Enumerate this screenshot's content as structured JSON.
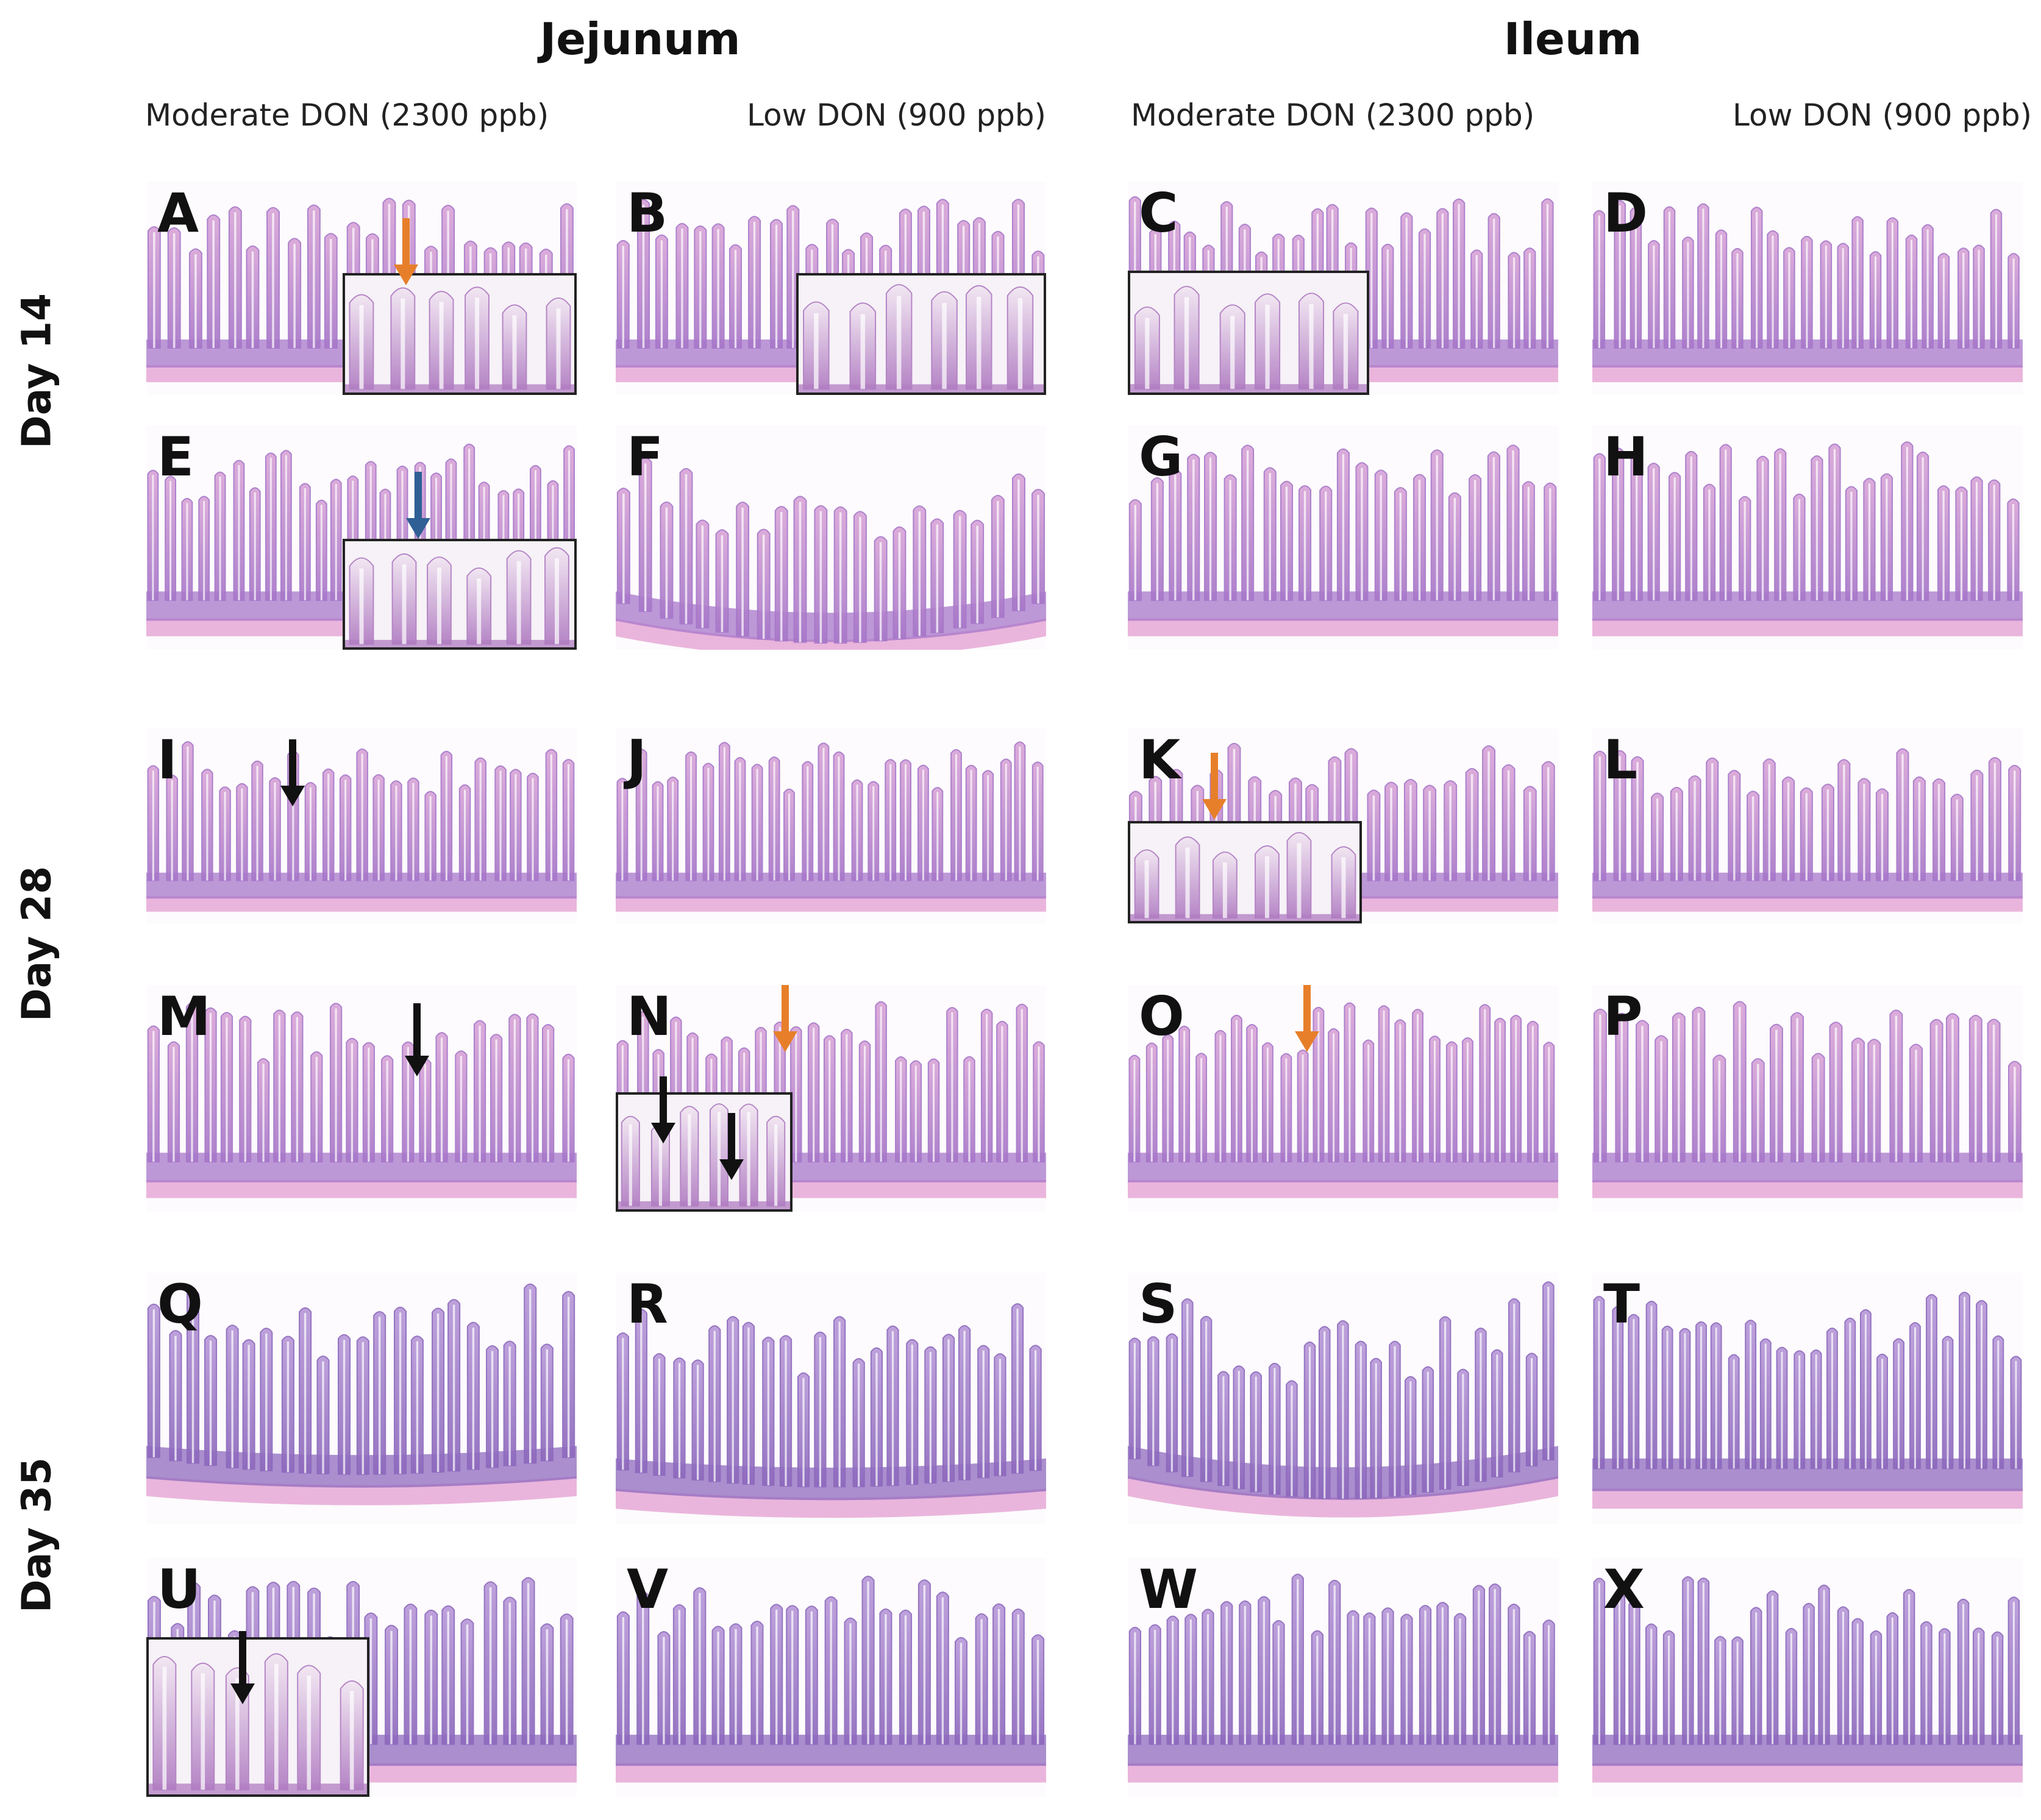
{
  "figure": {
    "sections": [
      {
        "title": "Jejunum"
      },
      {
        "title": "Ileum"
      }
    ],
    "treatments": [
      "Moderate DON (2300 ppb)",
      "Low DON (900 ppb)",
      "Moderate DON (2300 ppb)",
      "Low DON (900 ppb)"
    ],
    "days": [
      "Day 14",
      "Day 28",
      "Day 35"
    ],
    "panels": [
      "A",
      "B",
      "C",
      "D",
      "E",
      "F",
      "G",
      "H",
      "I",
      "J",
      "K",
      "L",
      "M",
      "N",
      "O",
      "P",
      "Q",
      "R",
      "S",
      "T",
      "U",
      "V",
      "W",
      "X"
    ],
    "colors": {
      "tissue_light": "#d9a6d8",
      "tissue_dark": "#a777c9",
      "muscle": "#e6a8d6",
      "arrow_orange": "#e77f2a",
      "arrow_blue": "#2f5f95",
      "arrow_black": "#111111"
    }
  }
}
